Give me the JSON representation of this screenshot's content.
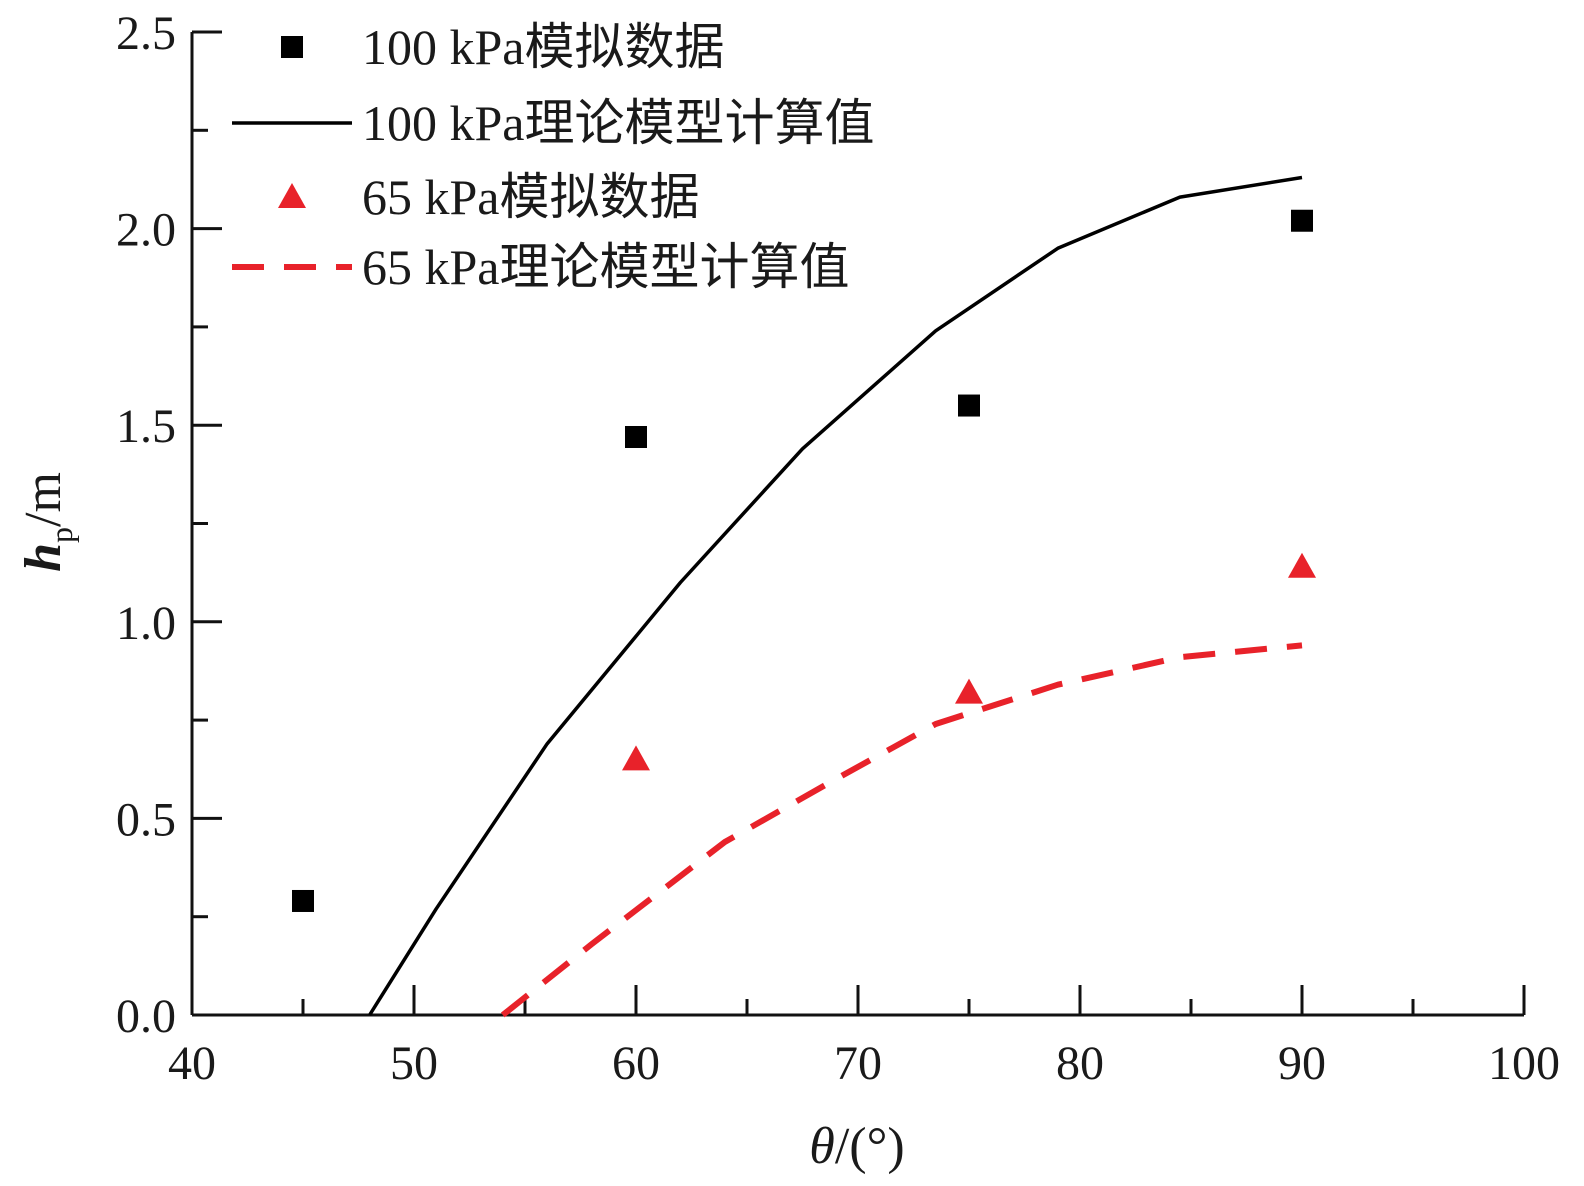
{
  "chart_data": {
    "type": "scatter",
    "title": "",
    "xlabel": {
      "symbol": "θ",
      "unit": "/(°)"
    },
    "ylabel": {
      "symbol": "h",
      "subscript": "p",
      "unit": "/m"
    },
    "xlim": [
      40,
      100
    ],
    "ylim": [
      0.0,
      2.5
    ],
    "x_ticks": [
      40,
      50,
      60,
      70,
      80,
      90,
      100
    ],
    "x_tick_labels": [
      "40",
      "50",
      "60",
      "70",
      "80",
      "90",
      "100"
    ],
    "x_minor_ticks": [
      45,
      55,
      65,
      75,
      85,
      95
    ],
    "y_ticks": [
      0.0,
      0.5,
      1.0,
      1.5,
      2.0,
      2.5
    ],
    "y_tick_labels": [
      "0.0",
      "0.5",
      "1.0",
      "1.5",
      "2.0",
      "2.5"
    ],
    "y_minor_ticks": [
      0.25,
      0.75,
      1.25,
      1.75,
      2.25
    ],
    "grid": false,
    "legend_position": "top-left",
    "series": [
      {
        "name": "100 kPa模拟数据",
        "kind": "scatter",
        "marker": "square",
        "color": "#000000",
        "x": [
          45,
          60,
          75,
          90
        ],
        "y": [
          0.29,
          1.47,
          1.55,
          2.02
        ]
      },
      {
        "name": "100 kPa理论模型计算值",
        "kind": "line",
        "style": "solid",
        "color": "#000000",
        "x": [
          48,
          51,
          56,
          62,
          67.5,
          73.5,
          79,
          84.5,
          90
        ],
        "y": [
          0.0,
          0.27,
          0.69,
          1.1,
          1.44,
          1.74,
          1.95,
          2.08,
          2.13
        ]
      },
      {
        "name": "65 kPa模拟数据",
        "kind": "scatter",
        "marker": "triangle",
        "color": "#e8222a",
        "x": [
          60,
          75,
          90
        ],
        "y": [
          0.65,
          0.82,
          1.14
        ]
      },
      {
        "name": "65 kPa理论模型计算值",
        "kind": "line",
        "style": "dashed",
        "color": "#e8222a",
        "x": [
          54,
          58,
          64,
          69,
          73.5,
          79,
          84.5,
          90
        ],
        "y": [
          0.0,
          0.18,
          0.44,
          0.6,
          0.74,
          0.84,
          0.91,
          0.94
        ]
      }
    ]
  }
}
